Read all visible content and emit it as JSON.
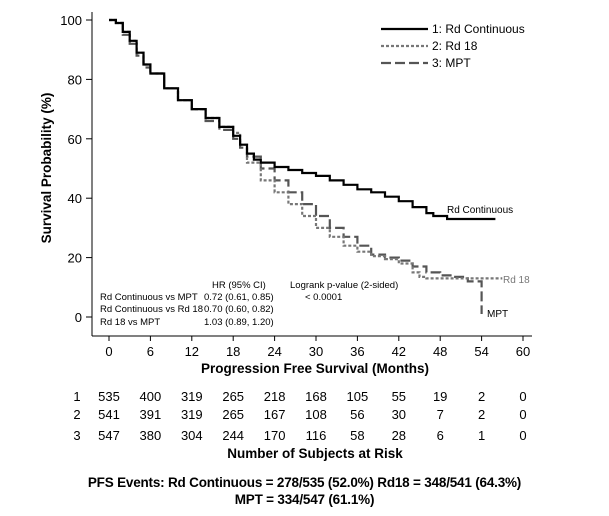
{
  "chart_data": {
    "type": "line",
    "title": "",
    "xlabel": "Progression Free Survival (Months)",
    "ylabel": "Survival Probability (%)",
    "xlim": [
      -3,
      62
    ],
    "ylim": [
      -3,
      100
    ],
    "xticks": [
      0,
      6,
      12,
      18,
      24,
      30,
      36,
      42,
      48,
      54,
      60
    ],
    "yticks": [
      0,
      20,
      40,
      60,
      80,
      100
    ],
    "legend": {
      "position": "top-right",
      "entries": [
        "1: Rd Continuous",
        "2: Rd 18",
        "3: MPT"
      ]
    },
    "series": [
      {
        "name": "1: Rd Continuous",
        "line_style": "solid",
        "color": "#000000",
        "end_label": "Rd Continuous",
        "points": [
          [
            0,
            100
          ],
          [
            1,
            99
          ],
          [
            2,
            96
          ],
          [
            3,
            93
          ],
          [
            4,
            89
          ],
          [
            5,
            85
          ],
          [
            6,
            82
          ],
          [
            8,
            77
          ],
          [
            10,
            73
          ],
          [
            12,
            70
          ],
          [
            14,
            67
          ],
          [
            16,
            64
          ],
          [
            18,
            61
          ],
          [
            19,
            58
          ],
          [
            20,
            55
          ],
          [
            21,
            53
          ],
          [
            22,
            52
          ],
          [
            24,
            50.5
          ],
          [
            26,
            49.5
          ],
          [
            28,
            48.5
          ],
          [
            30,
            47.5
          ],
          [
            32,
            46
          ],
          [
            34,
            44.5
          ],
          [
            36,
            43
          ],
          [
            38,
            42
          ],
          [
            40,
            40.5
          ],
          [
            42,
            39
          ],
          [
            44,
            37
          ],
          [
            46,
            35
          ],
          [
            47,
            34
          ],
          [
            48,
            34
          ],
          [
            49,
            33
          ],
          [
            54,
            33
          ],
          [
            56,
            33
          ]
        ]
      },
      {
        "name": "2: Rd 18",
        "line_style": "short-dash",
        "color": "#777777",
        "end_label": "Rd 18",
        "points": [
          [
            0,
            100
          ],
          [
            1,
            99
          ],
          [
            2,
            96
          ],
          [
            3,
            93
          ],
          [
            4,
            89
          ],
          [
            5,
            85
          ],
          [
            6,
            82
          ],
          [
            8,
            77
          ],
          [
            10,
            73
          ],
          [
            12,
            70
          ],
          [
            14,
            67
          ],
          [
            16,
            64
          ],
          [
            18,
            62
          ],
          [
            19,
            58
          ],
          [
            20,
            52
          ],
          [
            22,
            46
          ],
          [
            24,
            42
          ],
          [
            26,
            38
          ],
          [
            28,
            34
          ],
          [
            30,
            30
          ],
          [
            32,
            27
          ],
          [
            34,
            24
          ],
          [
            36,
            22
          ],
          [
            38,
            20.5
          ],
          [
            40,
            19.5
          ],
          [
            42,
            18
          ],
          [
            44,
            15
          ],
          [
            45,
            13.5
          ],
          [
            46,
            13
          ],
          [
            50,
            13
          ],
          [
            52,
            13
          ],
          [
            55,
            13
          ],
          [
            57,
            13
          ]
        ]
      },
      {
        "name": "3: MPT",
        "line_style": "long-dash",
        "color": "#555555",
        "end_label": "MPT",
        "points": [
          [
            0,
            100
          ],
          [
            1,
            99
          ],
          [
            2,
            95
          ],
          [
            3,
            92
          ],
          [
            4,
            88
          ],
          [
            5,
            84
          ],
          [
            6,
            82
          ],
          [
            8,
            77
          ],
          [
            10,
            73
          ],
          [
            12,
            70
          ],
          [
            14,
            66
          ],
          [
            16,
            63
          ],
          [
            18,
            60
          ],
          [
            19,
            57
          ],
          [
            20,
            54
          ],
          [
            22,
            50
          ],
          [
            24,
            46
          ],
          [
            26,
            42
          ],
          [
            28,
            38
          ],
          [
            30,
            34
          ],
          [
            32,
            30
          ],
          [
            34,
            27
          ],
          [
            36,
            24
          ],
          [
            38,
            21
          ],
          [
            40,
            20
          ],
          [
            42,
            19
          ],
          [
            44,
            17
          ],
          [
            46,
            15
          ],
          [
            48,
            14
          ],
          [
            50,
            13.5
          ],
          [
            52,
            12
          ],
          [
            54,
            10
          ],
          [
            54,
            1
          ]
        ]
      }
    ],
    "stats_table": {
      "header_hr": "HR (95% CI)",
      "header_p": "Logrank p-value (2-sided)",
      "rows": [
        {
          "label": "Rd Continuous vs MPT",
          "hr": "0.72 (0.61, 0.85)",
          "p": "< 0.0001"
        },
        {
          "label": "Rd Continuous vs Rd 18",
          "hr": "0.70 (0.60, 0.82)",
          "p": ""
        },
        {
          "label": "Rd 18 vs MPT",
          "hr": "1.03 (0.89, 1.20)",
          "p": ""
        }
      ]
    },
    "at_risk": {
      "title": "Number of Subjects at Risk",
      "times": [
        0,
        6,
        12,
        18,
        24,
        30,
        36,
        42,
        48,
        54,
        60
      ],
      "rows": [
        {
          "label": "1",
          "values": [
            535,
            400,
            319,
            265,
            218,
            168,
            105,
            55,
            19,
            2,
            0
          ]
        },
        {
          "label": "2",
          "values": [
            541,
            391,
            319,
            265,
            167,
            108,
            56,
            30,
            7,
            2,
            0
          ]
        },
        {
          "label": "3",
          "values": [
            547,
            380,
            304,
            244,
            170,
            116,
            58,
            28,
            6,
            1,
            0
          ]
        }
      ]
    }
  },
  "footer": {
    "line1": "PFS Events: Rd Continuous = 278/535 (52.0%)  Rd18 = 348/541 (64.3%)",
    "line2": "MPT = 334/547 (61.1%)"
  }
}
